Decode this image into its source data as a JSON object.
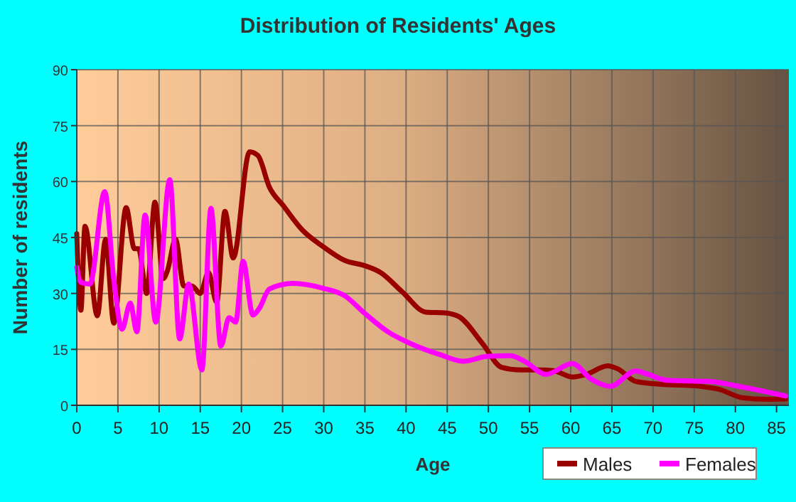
{
  "chart_data": {
    "type": "line",
    "title": "Distribution of Residents' Ages",
    "xlabel": "Age",
    "ylabel": "Number of residents",
    "xlim": [
      0,
      86.5
    ],
    "ylim": [
      0,
      90
    ],
    "xticks": [
      0,
      5,
      10,
      15,
      20,
      25,
      30,
      35,
      40,
      45,
      50,
      55,
      60,
      65,
      70,
      75,
      80,
      85
    ],
    "yticks": [
      0,
      15,
      30,
      45,
      60,
      75,
      90
    ],
    "grid": true,
    "legend": "bottom",
    "marker": "none",
    "line_style": "solid",
    "series": [
      {
        "name": "Males",
        "color": "#990000",
        "x": [
          0,
          0.5,
          1,
          2.5,
          3.5,
          4.5,
          6,
          7,
          7.5,
          8.5,
          9.5,
          10.5,
          11,
          12,
          13,
          14,
          15,
          16,
          17,
          18,
          19,
          21,
          22,
          23.4,
          25.1,
          27.4,
          29.9,
          32.6,
          34.9,
          36.9,
          39.5,
          42.4,
          44.7,
          46.4,
          49.3,
          51.6,
          53.9,
          56.2,
          57.9,
          60.2,
          61.9,
          64.5,
          65.7,
          67.9,
          70.5,
          75.7,
          78,
          80.9,
          83.8,
          86.1
        ],
        "values": [
          46,
          25.5,
          48,
          24,
          44.5,
          22,
          53,
          42,
          42,
          30,
          54.5,
          34,
          36,
          44.5,
          32,
          32,
          30,
          35.6,
          27.6,
          52,
          39.5,
          68,
          67,
          58.5,
          53.5,
          47,
          42.6,
          38.8,
          37.5,
          35.6,
          30.5,
          25,
          24.8,
          23.8,
          16.5,
          10.2,
          9.5,
          9.5,
          9.3,
          7.6,
          8.3,
          10.6,
          9.8,
          6.4,
          5.7,
          5.1,
          4.3,
          2,
          1.6,
          1.7
        ]
      },
      {
        "name": "Females",
        "color": "#ff00ff",
        "x": [
          0,
          0.5,
          1.6,
          3.4,
          4.5,
          5.5,
          6.5,
          7.3,
          8.3,
          9.6,
          11.3,
          12.5,
          13.6,
          15.2,
          16.3,
          17.5,
          18.5,
          19.3,
          20.2,
          21.4,
          22.2,
          23.4,
          26.3,
          29.9,
          32.6,
          34.9,
          37.8,
          40.6,
          44.1,
          47,
          49.8,
          52.7,
          54.4,
          57,
          60.2,
          62.5,
          64.8,
          67.9,
          69.4,
          71.7,
          76.9,
          79.7,
          83.8,
          86.1
        ],
        "values": [
          37,
          33,
          32.5,
          57.3,
          33.7,
          20.4,
          27.4,
          19.7,
          51,
          22.3,
          60.5,
          17.8,
          32.5,
          9.5,
          52.8,
          15.9,
          23.5,
          22.3,
          38.6,
          24.2,
          26.1,
          31.2,
          32.7,
          31.4,
          29.3,
          24.8,
          19.7,
          16.5,
          13.6,
          11.8,
          13.1,
          13.3,
          11.8,
          8.3,
          11.2,
          7,
          5.1,
          9.2,
          8.3,
          6.7,
          6.4,
          5.4,
          3.6,
          2.5
        ]
      }
    ]
  }
}
